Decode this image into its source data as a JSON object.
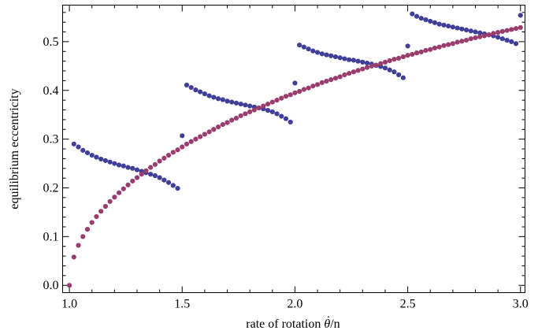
{
  "chart_data": {
    "type": "scatter",
    "title": "",
    "xlabel_prefix": "rate of rotation ",
    "xlabel_symbol": "θ",
    "xlabel_dot": "˙",
    "xlabel_suffix": "/n",
    "ylabel": "equilibrium eccentricity",
    "xlim": [
      0.97,
      3.02
    ],
    "ylim": [
      -0.015,
      0.575
    ],
    "xticks": [
      1.0,
      1.5,
      2.0,
      2.5,
      3.0
    ],
    "xtick_labels": [
      "1.0",
      "1.5",
      "2.0",
      "2.5",
      "3.0"
    ],
    "yticks": [
      0.0,
      0.1,
      0.2,
      0.3,
      0.4,
      0.5
    ],
    "ytick_labels": [
      "0.0",
      "0.1",
      "0.2",
      "0.3",
      "0.4",
      "0.5"
    ],
    "grid": false,
    "legend": "none",
    "series": [
      {
        "color": "#3f3f9a",
        "points": [
          [
            1.02,
            0.29
          ],
          [
            1.04,
            0.284
          ],
          [
            1.06,
            0.277
          ],
          [
            1.08,
            0.272
          ],
          [
            1.1,
            0.267
          ],
          [
            1.12,
            0.263
          ],
          [
            1.14,
            0.259
          ],
          [
            1.16,
            0.256
          ],
          [
            1.18,
            0.253
          ],
          [
            1.2,
            0.25
          ],
          [
            1.22,
            0.247
          ],
          [
            1.24,
            0.245
          ],
          [
            1.26,
            0.242
          ],
          [
            1.28,
            0.24
          ],
          [
            1.3,
            0.237
          ],
          [
            1.32,
            0.234
          ],
          [
            1.34,
            0.231
          ],
          [
            1.36,
            0.228
          ],
          [
            1.38,
            0.225
          ],
          [
            1.4,
            0.221
          ],
          [
            1.42,
            0.216
          ],
          [
            1.44,
            0.211
          ],
          [
            1.46,
            0.205
          ],
          [
            1.48,
            0.199
          ],
          [
            1.5,
            0.307
          ],
          [
            1.52,
            0.411
          ],
          [
            1.54,
            0.406
          ],
          [
            1.56,
            0.401
          ],
          [
            1.58,
            0.397
          ],
          [
            1.6,
            0.393
          ],
          [
            1.62,
            0.389
          ],
          [
            1.64,
            0.386
          ],
          [
            1.66,
            0.383
          ],
          [
            1.68,
            0.381
          ],
          [
            1.7,
            0.378
          ],
          [
            1.72,
            0.376
          ],
          [
            1.74,
            0.374
          ],
          [
            1.76,
            0.372
          ],
          [
            1.78,
            0.37
          ],
          [
            1.8,
            0.368
          ],
          [
            1.82,
            0.366
          ],
          [
            1.84,
            0.364
          ],
          [
            1.86,
            0.362
          ],
          [
            1.88,
            0.359
          ],
          [
            1.9,
            0.356
          ],
          [
            1.92,
            0.352
          ],
          [
            1.94,
            0.347
          ],
          [
            1.96,
            0.342
          ],
          [
            1.98,
            0.335
          ],
          [
            2.0,
            0.415
          ],
          [
            2.02,
            0.493
          ],
          [
            2.04,
            0.489
          ],
          [
            2.06,
            0.485
          ],
          [
            2.08,
            0.481
          ],
          [
            2.1,
            0.478
          ],
          [
            2.12,
            0.475
          ],
          [
            2.14,
            0.473
          ],
          [
            2.16,
            0.471
          ],
          [
            2.18,
            0.469
          ],
          [
            2.2,
            0.467
          ],
          [
            2.22,
            0.465
          ],
          [
            2.24,
            0.463
          ],
          [
            2.26,
            0.462
          ],
          [
            2.28,
            0.46
          ],
          [
            2.3,
            0.458
          ],
          [
            2.32,
            0.456
          ],
          [
            2.34,
            0.454
          ],
          [
            2.36,
            0.451
          ],
          [
            2.38,
            0.449
          ],
          [
            2.4,
            0.446
          ],
          [
            2.42,
            0.442
          ],
          [
            2.44,
            0.438
          ],
          [
            2.46,
            0.432
          ],
          [
            2.48,
            0.426
          ],
          [
            2.5,
            0.491
          ],
          [
            2.52,
            0.557
          ],
          [
            2.54,
            0.552
          ],
          [
            2.56,
            0.548
          ],
          [
            2.58,
            0.545
          ],
          [
            2.6,
            0.542
          ],
          [
            2.62,
            0.539
          ],
          [
            2.64,
            0.536
          ],
          [
            2.66,
            0.534
          ],
          [
            2.68,
            0.532
          ],
          [
            2.7,
            0.53
          ],
          [
            2.72,
            0.528
          ],
          [
            2.74,
            0.526
          ],
          [
            2.76,
            0.524
          ],
          [
            2.78,
            0.522
          ],
          [
            2.8,
            0.52
          ],
          [
            2.82,
            0.518
          ],
          [
            2.84,
            0.516
          ],
          [
            2.86,
            0.514
          ],
          [
            2.88,
            0.512
          ],
          [
            2.9,
            0.509
          ],
          [
            2.92,
            0.506
          ],
          [
            2.94,
            0.503
          ],
          [
            2.96,
            0.5
          ],
          [
            2.98,
            0.496
          ],
          [
            3.0,
            0.554
          ]
        ]
      },
      {
        "color": "#9a3d6e",
        "points": [
          [
            1.0,
            0.0
          ],
          [
            1.02,
            0.058
          ],
          [
            1.04,
            0.082
          ],
          [
            1.06,
            0.1
          ],
          [
            1.08,
            0.115
          ],
          [
            1.1,
            0.129
          ],
          [
            1.12,
            0.141
          ],
          [
            1.14,
            0.152
          ],
          [
            1.16,
            0.162
          ],
          [
            1.18,
            0.172
          ],
          [
            1.2,
            0.181
          ],
          [
            1.22,
            0.19
          ],
          [
            1.24,
            0.198
          ],
          [
            1.26,
            0.206
          ],
          [
            1.28,
            0.214
          ],
          [
            1.3,
            0.221
          ],
          [
            1.32,
            0.228
          ],
          [
            1.34,
            0.235
          ],
          [
            1.36,
            0.242
          ],
          [
            1.38,
            0.248
          ],
          [
            1.4,
            0.255
          ],
          [
            1.42,
            0.261
          ],
          [
            1.44,
            0.267
          ],
          [
            1.46,
            0.273
          ],
          [
            1.48,
            0.278
          ],
          [
            1.5,
            0.284
          ],
          [
            1.52,
            0.29
          ],
          [
            1.54,
            0.295
          ],
          [
            1.56,
            0.3
          ],
          [
            1.58,
            0.305
          ],
          [
            1.6,
            0.31
          ],
          [
            1.62,
            0.315
          ],
          [
            1.64,
            0.32
          ],
          [
            1.66,
            0.325
          ],
          [
            1.68,
            0.33
          ],
          [
            1.7,
            0.334
          ],
          [
            1.72,
            0.339
          ],
          [
            1.74,
            0.343
          ],
          [
            1.76,
            0.348
          ],
          [
            1.78,
            0.352
          ],
          [
            1.8,
            0.356
          ],
          [
            1.82,
            0.36
          ],
          [
            1.84,
            0.364
          ],
          [
            1.86,
            0.368
          ],
          [
            1.88,
            0.372
          ],
          [
            1.9,
            0.376
          ],
          [
            1.92,
            0.38
          ],
          [
            1.94,
            0.384
          ],
          [
            1.96,
            0.388
          ],
          [
            1.98,
            0.391
          ],
          [
            2.0,
            0.395
          ],
          [
            2.02,
            0.398
          ],
          [
            2.04,
            0.402
          ],
          [
            2.06,
            0.405
          ],
          [
            2.08,
            0.409
          ],
          [
            2.1,
            0.412
          ],
          [
            2.12,
            0.416
          ],
          [
            2.14,
            0.419
          ],
          [
            2.16,
            0.422
          ],
          [
            2.18,
            0.425
          ],
          [
            2.2,
            0.428
          ],
          [
            2.22,
            0.432
          ],
          [
            2.24,
            0.435
          ],
          [
            2.26,
            0.438
          ],
          [
            2.28,
            0.441
          ],
          [
            2.3,
            0.444
          ],
          [
            2.32,
            0.447
          ],
          [
            2.34,
            0.45
          ],
          [
            2.36,
            0.452
          ],
          [
            2.38,
            0.455
          ],
          [
            2.4,
            0.458
          ],
          [
            2.42,
            0.461
          ],
          [
            2.44,
            0.464
          ],
          [
            2.46,
            0.466
          ],
          [
            2.48,
            0.469
          ],
          [
            2.5,
            0.472
          ],
          [
            2.52,
            0.474
          ],
          [
            2.54,
            0.477
          ],
          [
            2.56,
            0.479
          ],
          [
            2.58,
            0.482
          ],
          [
            2.6,
            0.484
          ],
          [
            2.62,
            0.487
          ],
          [
            2.64,
            0.489
          ],
          [
            2.66,
            0.492
          ],
          [
            2.68,
            0.494
          ],
          [
            2.7,
            0.496
          ],
          [
            2.72,
            0.499
          ],
          [
            2.74,
            0.501
          ],
          [
            2.76,
            0.503
          ],
          [
            2.78,
            0.506
          ],
          [
            2.8,
            0.508
          ],
          [
            2.82,
            0.51
          ],
          [
            2.84,
            0.512
          ],
          [
            2.86,
            0.514
          ],
          [
            2.88,
            0.517
          ],
          [
            2.9,
            0.519
          ],
          [
            2.92,
            0.521
          ],
          [
            2.94,
            0.523
          ],
          [
            2.96,
            0.525
          ],
          [
            2.98,
            0.527
          ],
          [
            3.0,
            0.529
          ]
        ]
      }
    ]
  }
}
